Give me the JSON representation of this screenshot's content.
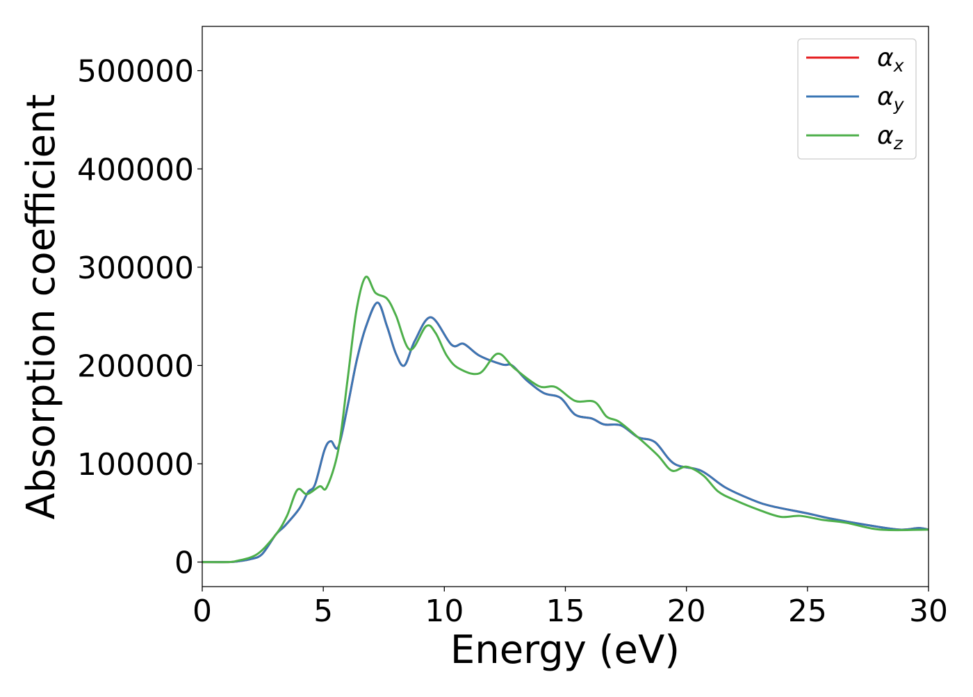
{
  "chart_data": {
    "type": "line",
    "title": "",
    "xlabel": "Energy (eV)",
    "ylabel": "Absorption coefficient",
    "xlim": [
      0,
      30
    ],
    "ylim": [
      -25000,
      545000
    ],
    "xticks": [
      "0",
      "5",
      "10",
      "15",
      "20",
      "25",
      "30"
    ],
    "xtick_values": [
      0,
      5,
      10,
      15,
      20,
      25,
      30
    ],
    "yticks": [
      "0",
      "100000",
      "200000",
      "300000",
      "400000",
      "500000"
    ],
    "ytick_values": [
      0,
      100000,
      200000,
      300000,
      400000,
      500000
    ],
    "grid": false,
    "legend_position": "top-right",
    "series": [
      {
        "name": "α_x",
        "label_base": "α",
        "label_sub": "x",
        "color": "#e41a1c",
        "x": [
          0,
          1,
          1.4,
          2,
          2.47,
          3.04,
          3.42,
          4.0,
          4.37,
          4.66,
          5.05,
          5.31,
          5.62,
          6.0,
          6.38,
          6.77,
          7.24,
          7.63,
          8.0,
          8.35,
          8.78,
          9.45,
          10.3,
          10.8,
          11.45,
          12.4,
          12.8,
          13.4,
          14.1,
          14.8,
          15.4,
          16.1,
          16.6,
          17.3,
          18.0,
          18.7,
          19.5,
          20.6,
          21.6,
          22.7,
          23.5,
          25.0,
          25.9,
          27.5,
          28.8,
          29.6,
          30
        ],
        "y": [
          0,
          0,
          500,
          3000,
          8000,
          28000,
          37000,
          54000,
          71000,
          79000,
          114000,
          123000,
          117000,
          158000,
          205000,
          240000,
          264000,
          240000,
          212000,
          200000,
          225000,
          249000,
          221000,
          222000,
          210000,
          201000,
          200000,
          185000,
          172000,
          167000,
          150000,
          146000,
          140000,
          139000,
          127000,
          122000,
          100000,
          93000,
          76000,
          63500,
          57000,
          49500,
          44500,
          37500,
          33000,
          34600,
          33000
        ]
      },
      {
        "name": "α_y",
        "label_base": "α",
        "label_sub": "y",
        "color": "#3a76b4",
        "x": [
          0,
          1,
          1.4,
          2,
          2.47,
          3.04,
          3.42,
          4.0,
          4.37,
          4.66,
          5.05,
          5.31,
          5.62,
          6.0,
          6.38,
          6.77,
          7.24,
          7.63,
          8.0,
          8.35,
          8.78,
          9.45,
          10.3,
          10.8,
          11.45,
          12.4,
          12.8,
          13.4,
          14.1,
          14.8,
          15.4,
          16.1,
          16.6,
          17.3,
          18.0,
          18.7,
          19.5,
          20.6,
          21.6,
          22.7,
          23.5,
          25.0,
          25.9,
          27.5,
          28.8,
          29.6,
          30
        ],
        "y": [
          0,
          0,
          500,
          3000,
          8000,
          28000,
          37000,
          54000,
          71000,
          79000,
          114000,
          123000,
          117000,
          158000,
          205000,
          240000,
          264000,
          240000,
          212000,
          200000,
          225000,
          249000,
          221000,
          222000,
          210000,
          201000,
          200000,
          185000,
          172000,
          167000,
          150000,
          146000,
          140000,
          139000,
          127000,
          122000,
          100000,
          93000,
          76000,
          63500,
          57000,
          49500,
          44500,
          37500,
          33000,
          34600,
          33000
        ]
      },
      {
        "name": "α_z",
        "label_base": "α",
        "label_sub": "z",
        "color": "#4daf4a",
        "x": [
          0,
          1,
          1.4,
          2.27,
          3.04,
          3.5,
          3.93,
          4.33,
          4.85,
          5.14,
          5.62,
          6.0,
          6.37,
          6.75,
          7.15,
          7.63,
          8.0,
          8.58,
          9.25,
          9.64,
          10.1,
          10.6,
          11.45,
          12.2,
          12.9,
          13.9,
          14.6,
          15.4,
          16.2,
          16.7,
          17.2,
          17.9,
          18.8,
          19.4,
          20.0,
          20.7,
          21.3,
          22.0,
          23.0,
          23.9,
          24.7,
          25.6,
          26.6,
          28.0,
          30
        ],
        "y": [
          0,
          0,
          1000,
          8000,
          28000,
          47000,
          73500,
          69000,
          77000,
          76000,
          114000,
          185000,
          256000,
          290000,
          274000,
          268000,
          251000,
          216000,
          240000,
          233000,
          210000,
          197000,
          192000,
          212000,
          197000,
          179000,
          178000,
          164000,
          163000,
          148000,
          143000,
          129000,
          109000,
          93000,
          97000,
          88000,
          72000,
          63000,
          53000,
          46000,
          47000,
          43000,
          40000,
          33000,
          33000
        ]
      }
    ]
  }
}
